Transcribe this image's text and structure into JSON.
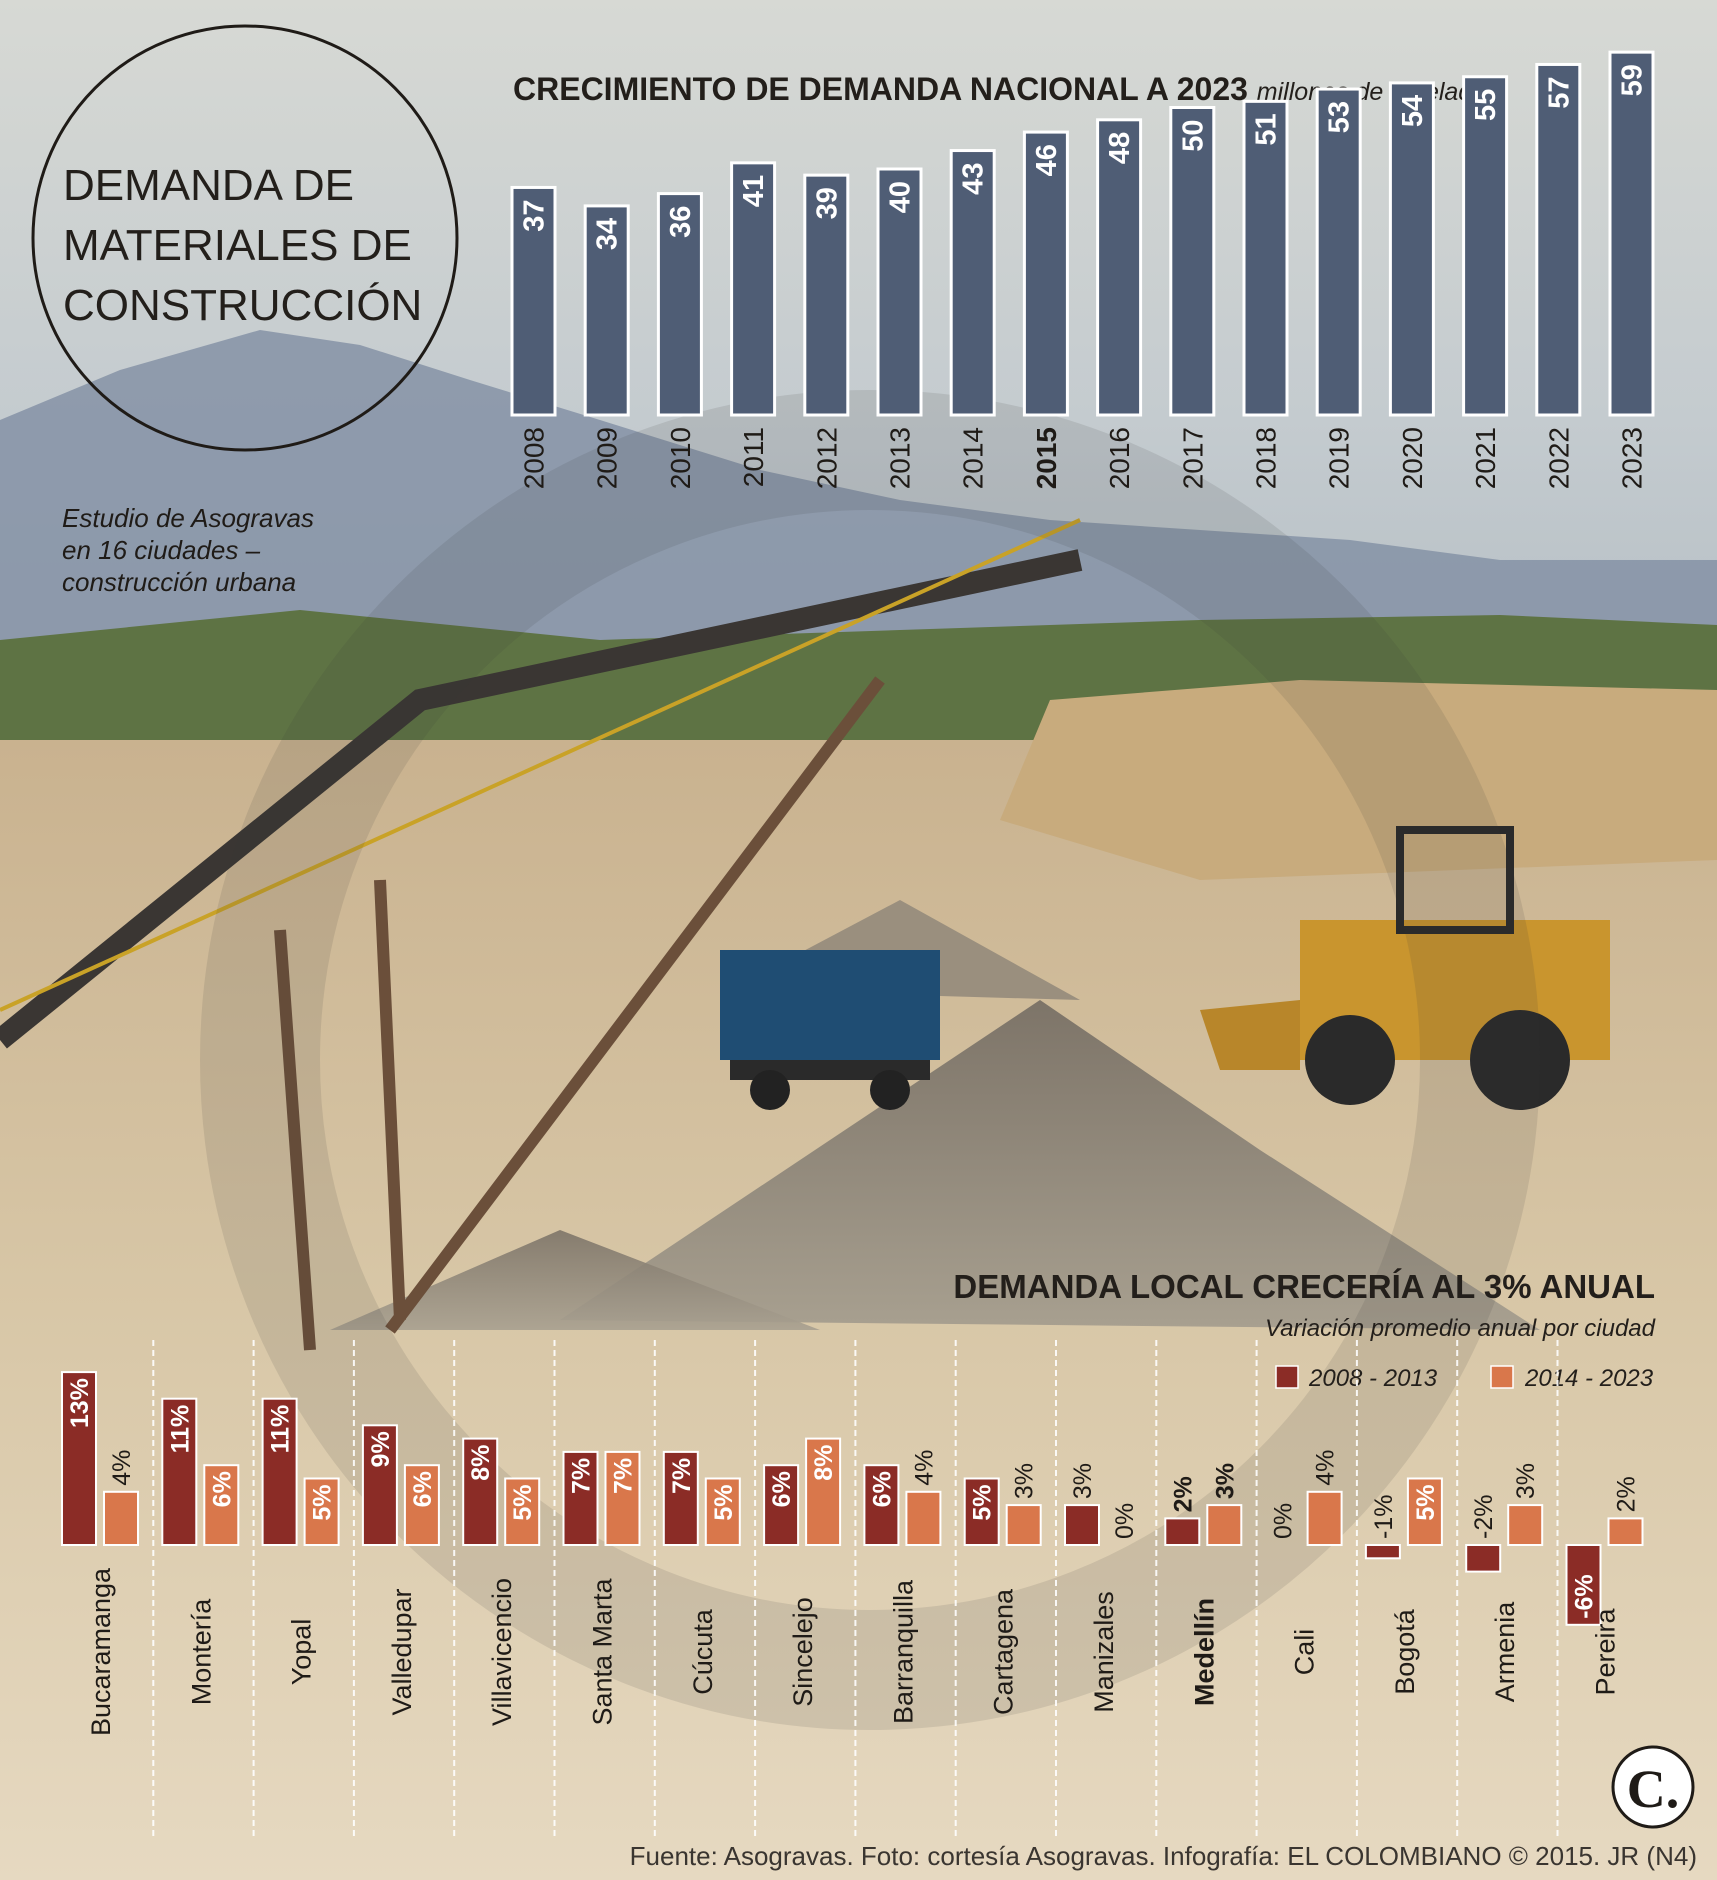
{
  "circle_title": [
    "DEMANDA DE",
    "MATERIALES DE",
    "CONSTRUCCIÓN"
  ],
  "study_note": [
    "Estudio de Asogravas",
    "en 16 ciudades –",
    "construcción urbana"
  ],
  "national": {
    "title": "CRECIMIENTO DE DEMANDA NACIONAL A 2023",
    "unit": "millones de toneladas",
    "bar_color": "#4f5d75"
  },
  "local": {
    "title": "DEMANDA LOCAL CRECERÍA AL 3% ANUAL",
    "subtitle": "Variación promedio anual por ciudad",
    "legend": [
      {
        "label": "2008 - 2013",
        "color": "#8b2c26"
      },
      {
        "label": "2014 - 2023",
        "color": "#d9774b"
      }
    ]
  },
  "chart_data": [
    {
      "type": "bar",
      "title": "CRECIMIENTO DE DEMANDA NACIONAL A 2023",
      "ylabel": "millones de toneladas",
      "categories": [
        "2008",
        "2009",
        "2010",
        "2011",
        "2012",
        "2013",
        "2014",
        "2015",
        "2016",
        "2017",
        "2018",
        "2019",
        "2020",
        "2021",
        "2022",
        "2023"
      ],
      "values": [
        37,
        34,
        36,
        41,
        39,
        40,
        43,
        46,
        48,
        50,
        51,
        53,
        54,
        55,
        57,
        59
      ],
      "highlight": "2015"
    },
    {
      "type": "bar",
      "title": "DEMANDA LOCAL CRECERÍA AL 3% ANUAL",
      "subtitle": "Variación promedio anual por ciudad",
      "unit": "%",
      "categories": [
        "Bucaramanga",
        "Montería",
        "Yopal",
        "Valledupar",
        "Villavicencio",
        "Santa Marta",
        "Cúcuta",
        "Sincelejo",
        "Barranquilla",
        "Cartagena",
        "Manizales",
        "Medellín",
        "Cali",
        "Bogotá",
        "Armenia",
        "Pereira"
      ],
      "highlight": "Medellín",
      "series": [
        {
          "name": "2008 - 2013",
          "values": [
            13,
            11,
            11,
            9,
            8,
            7,
            7,
            6,
            6,
            5,
            3,
            2,
            0,
            -1,
            -2,
            -6
          ]
        },
        {
          "name": "2014 - 2023",
          "values": [
            4,
            6,
            5,
            6,
            5,
            7,
            5,
            8,
            4,
            3,
            0,
            3,
            4,
            5,
            3,
            2
          ]
        }
      ]
    }
  ],
  "logo_letter": "C.",
  "footer": "Fuente: Asogravas. Foto: cortesía Asogravas. Infografía: EL COLOMBIANO © 2015. JR (N4)"
}
